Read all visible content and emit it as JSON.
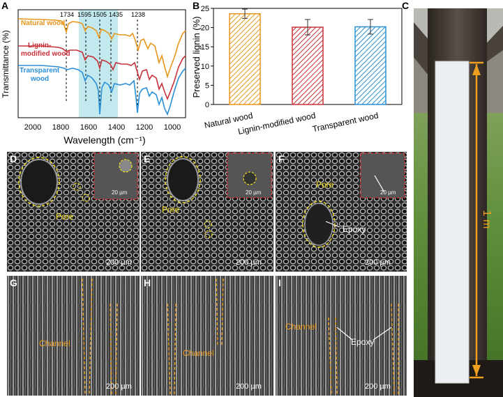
{
  "panels": {
    "A": "A",
    "B": "B",
    "C": "C",
    "D": "D",
    "E": "E",
    "F": "F",
    "G": "G",
    "H": "H",
    "I": "I"
  },
  "panel_a": {
    "ylabel": "Transmittance (%)",
    "xlabel": "Wavelength (cm⁻¹)",
    "xticks": [
      "2000",
      "1800",
      "1600",
      "1400",
      "1200",
      "1000"
    ],
    "peaks": [
      "1734",
      "1595",
      "1505",
      "1435",
      "1238"
    ],
    "series": [
      {
        "name": "Natural wood",
        "color": "#e8961a"
      },
      {
        "name": "Lignin-\nmodified wood",
        "color": "#c9303a"
      },
      {
        "name": "Transparent\nwood",
        "color": "#2a8fd6"
      }
    ],
    "highlight_color": "#8fd8e0"
  },
  "chart_data": {
    "type": "bar",
    "categories": [
      "Natural wood",
      "Lignin-modified wood",
      "Transparent wood"
    ],
    "values": [
      23.6,
      20.1,
      20.2
    ],
    "errors": [
      1.2,
      2.0,
      1.9
    ],
    "colors": [
      "#e8961a",
      "#c9303a",
      "#2a8fd6"
    ],
    "ylabel": "Preserved lignin (%)",
    "ylim": [
      0,
      25
    ],
    "yticks": [
      "0",
      "5",
      "10",
      "15",
      "20",
      "25"
    ]
  },
  "panel_c": {
    "length_label": "1 m",
    "arrow_color": "#f0a020"
  },
  "sem": {
    "pore": "Pore",
    "epoxy": "Epoxy",
    "channel": "Channel",
    "scale_200": "200 µm",
    "scale_20": "20 µm"
  }
}
